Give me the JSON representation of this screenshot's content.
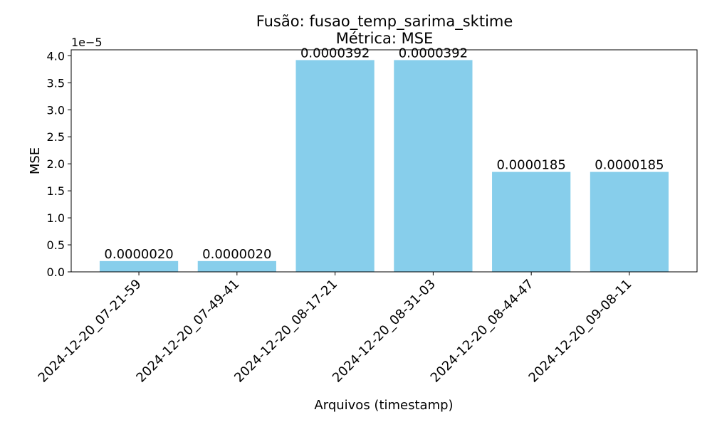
{
  "chart_data": {
    "type": "bar",
    "title": "Fusão: fusao_temp_sarima_sktime",
    "subtitle": "Métrica: MSE",
    "xlabel": "Arquivos (timestamp)",
    "ylabel": "MSE",
    "y_scale_label": "1e−5",
    "categories": [
      "2024-12-20_07-21-59",
      "2024-12-20_07-49-41",
      "2024-12-20_08-17-21",
      "2024-12-20_08-31-03",
      "2024-12-20_08-44-47",
      "2024-12-20_09-08-11"
    ],
    "values": [
      2e-06,
      2e-06,
      3.92e-05,
      3.92e-05,
      1.85e-05,
      1.85e-05
    ],
    "value_labels": [
      "0.0000020",
      "0.0000020",
      "0.0000392",
      "0.0000392",
      "0.0000185",
      "0.0000185"
    ],
    "ylim": [
      0,
      4.11e-05
    ],
    "yticks": [
      0,
      5e-06,
      1e-05,
      1.5e-05,
      2e-05,
      2.5e-05,
      3e-05,
      3.5e-05,
      4e-05
    ],
    "ytick_labels": [
      "0.0",
      "0.5",
      "1.0",
      "1.5",
      "2.0",
      "2.5",
      "3.0",
      "3.5",
      "4.0"
    ],
    "bar_color": "#87ceeb",
    "grid": false,
    "legend": "none"
  }
}
